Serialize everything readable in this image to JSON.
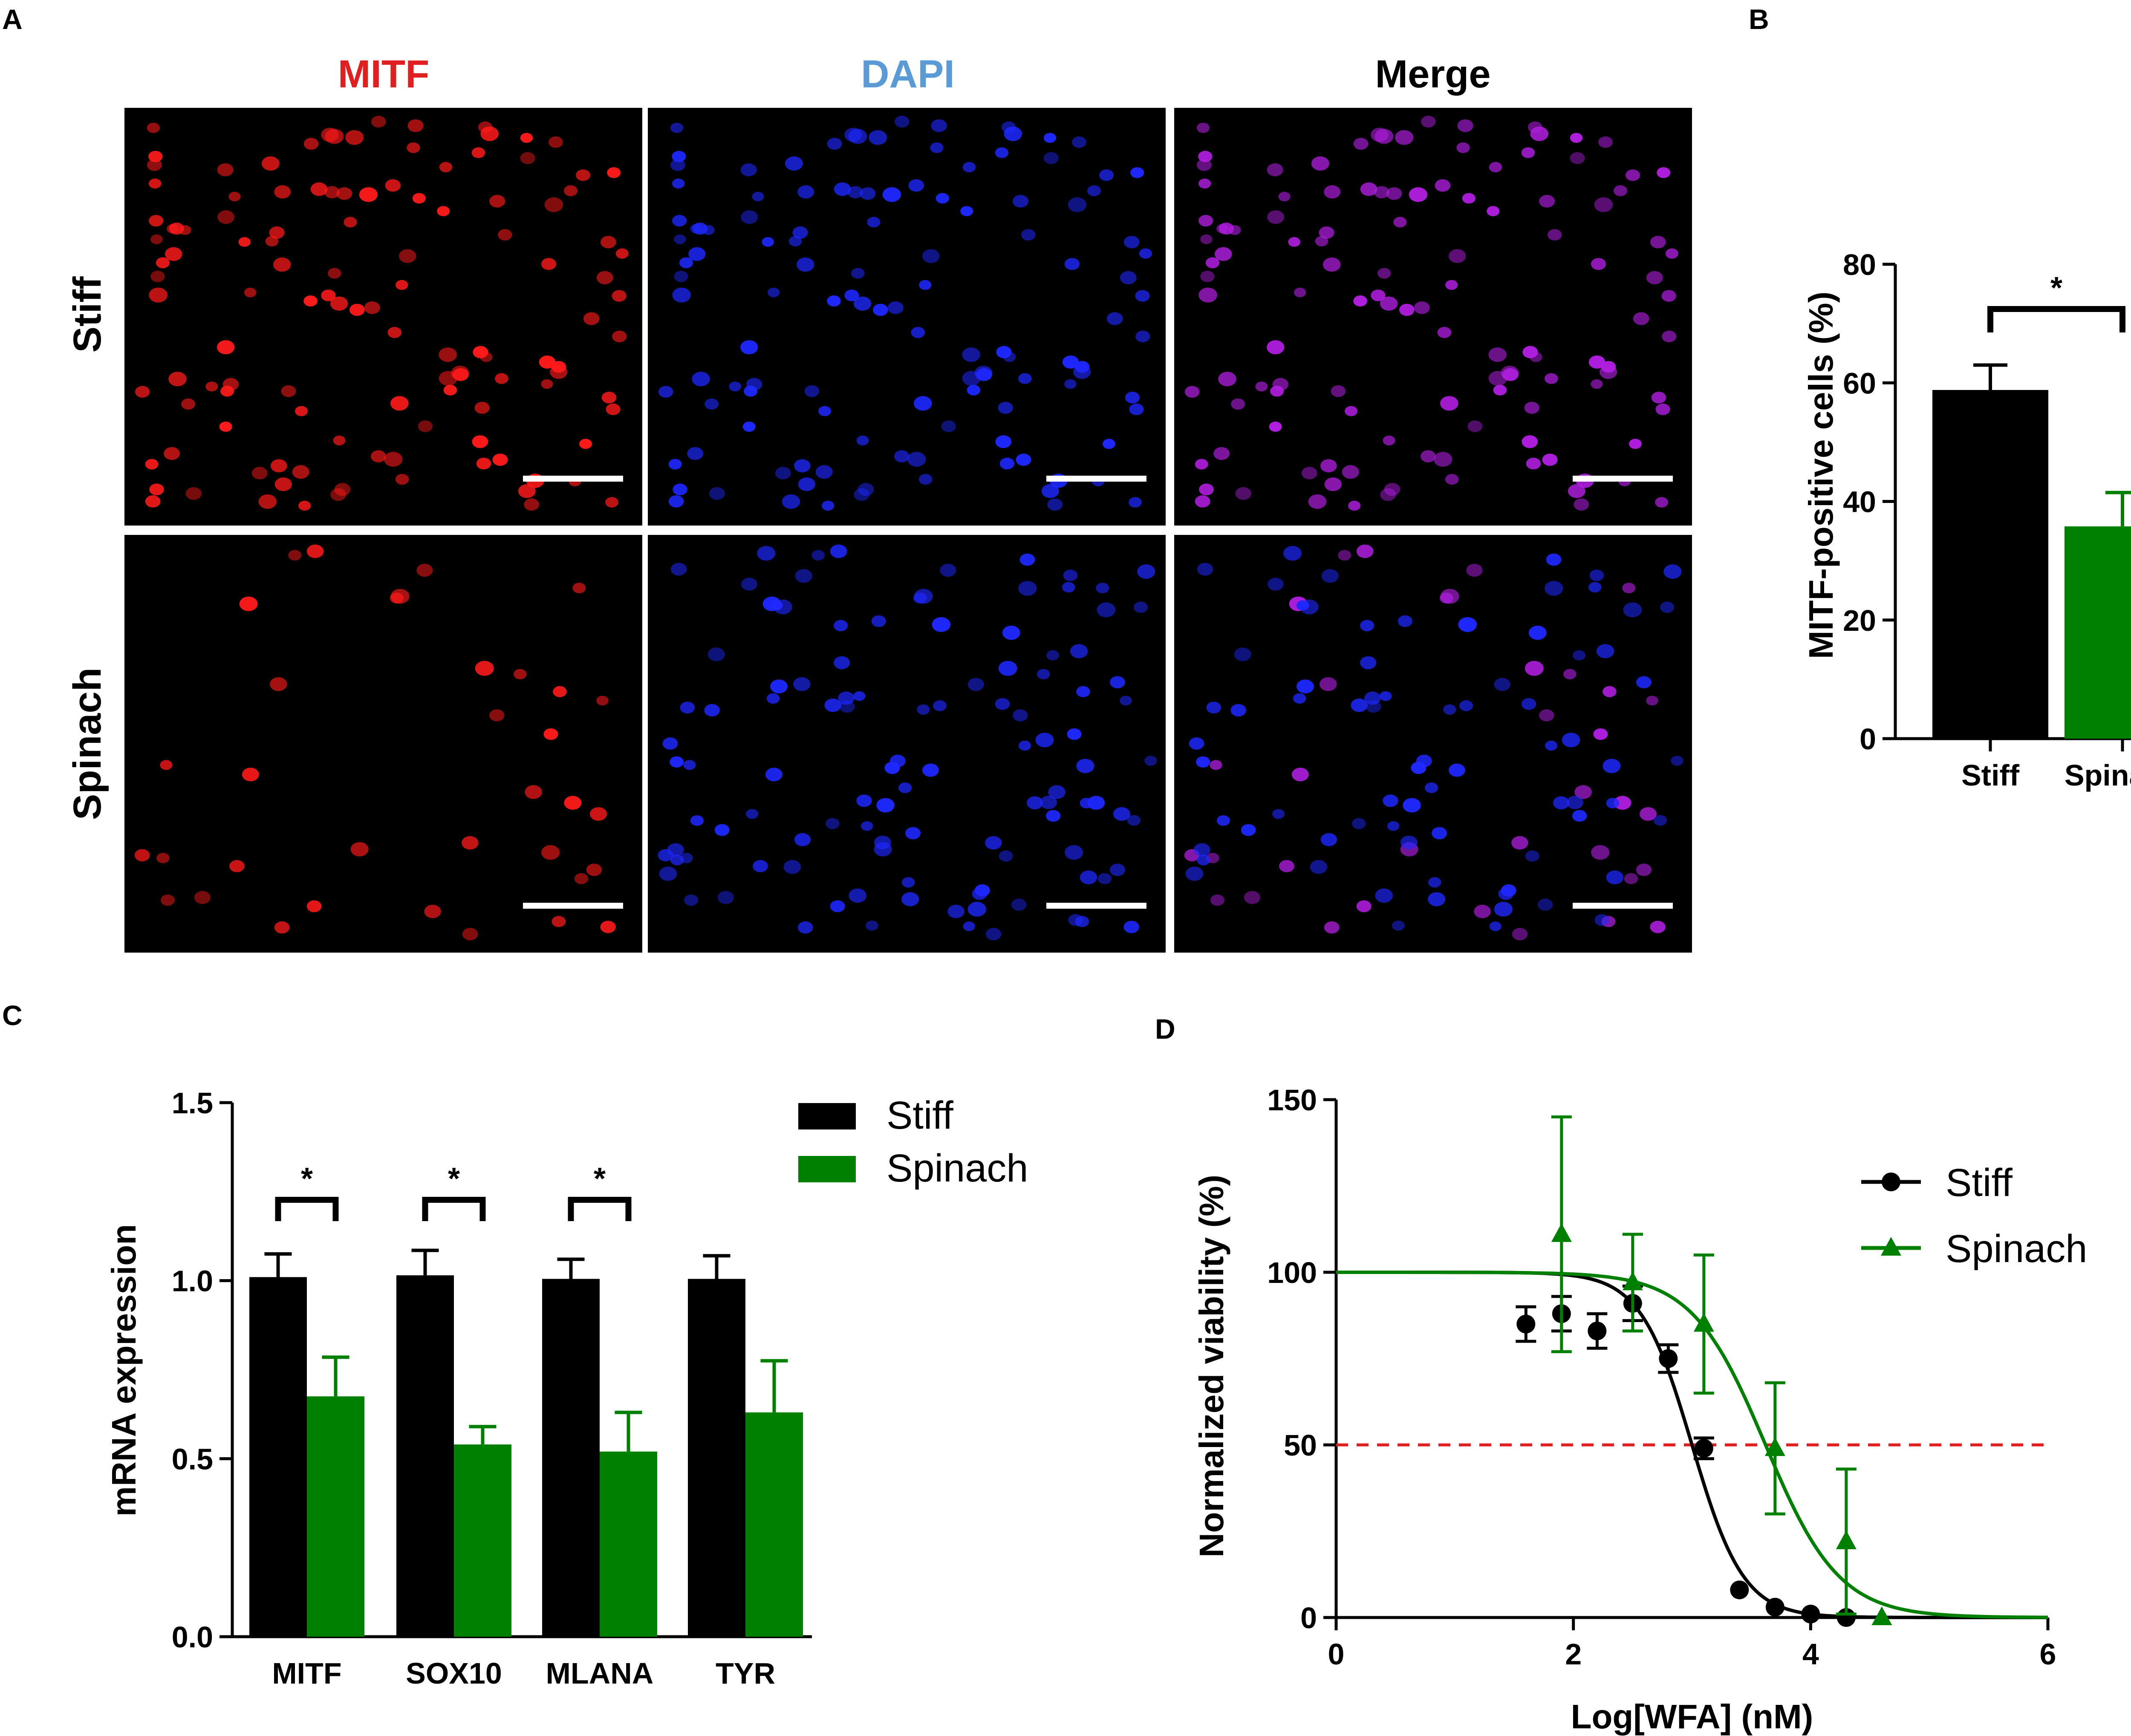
{
  "panel_labels": {
    "a": "A",
    "b": "B",
    "c": "C",
    "d": "D"
  },
  "panel_a": {
    "columns": [
      "MITF",
      "DAPI",
      "Merge"
    ],
    "column_colors": [
      "#e02020",
      "#5b9bd5",
      "#000000"
    ],
    "rows": [
      "Stiff",
      "Spinach"
    ],
    "channel_colors": {
      "MITF": "#ff1a1a",
      "DAPI": "#1e28ff",
      "Merge": "#b01ee0",
      "background": "#000000"
    },
    "stiff_nuclei_count": 120,
    "spinach_nuclei_count_dapi": 110,
    "spinach_mitf_positive_count": 35
  },
  "chart_data": [
    {
      "id": "B",
      "type": "bar",
      "categories": [
        "Stiff",
        "Spinach"
      ],
      "values": [
        58.8,
        35.8
      ],
      "errors": [
        4.2,
        5.7
      ],
      "colors": [
        "#000000",
        "#008000"
      ],
      "ylabel": "MITF-positive cells (%)",
      "ylim": [
        0,
        80
      ],
      "yticks": [
        "0",
        "20",
        "40",
        "60",
        "80"
      ],
      "significance": [
        {
          "between": [
            0,
            1
          ],
          "label": "*"
        }
      ]
    },
    {
      "id": "C",
      "type": "bar",
      "categories": [
        "MITF",
        "SOX10",
        "MLANA",
        "TYR"
      ],
      "series": [
        {
          "name": "Stiff",
          "color": "#000000",
          "values": [
            1.01,
            1.015,
            1.005,
            1.005
          ],
          "errors": [
            0.065,
            0.07,
            0.055,
            0.065
          ]
        },
        {
          "name": "Spinach",
          "color": "#008000",
          "values": [
            0.675,
            0.54,
            0.52,
            0.63
          ],
          "errors": [
            0.11,
            0.05,
            0.11,
            0.145
          ]
        }
      ],
      "ylabel": "mRNA expression",
      "ylim": [
        0,
        1.5
      ],
      "yticks": [
        "0.0",
        "0.5",
        "1.0",
        "1.5"
      ],
      "significance": [
        {
          "category": 0,
          "label": "*"
        },
        {
          "category": 1,
          "label": "*"
        },
        {
          "category": 2,
          "label": "*"
        }
      ],
      "legend": "top-right"
    },
    {
      "id": "D",
      "type": "scatter",
      "xlabel": "Log[WFA] (nM)",
      "ylabel": "Normalized viability (%)",
      "xlim": [
        0,
        6
      ],
      "ylim": [
        0,
        150
      ],
      "xticks": [
        "0",
        "2",
        "4",
        "6"
      ],
      "yticks": [
        "0",
        "50",
        "100",
        "150"
      ],
      "reference_line": {
        "y": 50,
        "color": "#e02020",
        "style": "dashed"
      },
      "legend": "right",
      "series": [
        {
          "name": "Stiff",
          "color": "#000000",
          "marker": "circle",
          "x": [
            1.6,
            1.9,
            2.2,
            2.5,
            2.8,
            3.1,
            3.4,
            3.7,
            4.0,
            4.3
          ],
          "y": [
            85,
            88,
            83,
            91,
            75,
            49,
            8,
            3,
            1,
            0
          ],
          "err": [
            5,
            5,
            5,
            5,
            4,
            3,
            0,
            0,
            0,
            0
          ],
          "fit_ic50_log": 3.0,
          "fit_hill": 2.0
        },
        {
          "name": "Spinach",
          "color": "#008000",
          "marker": "triangle",
          "x": [
            1.9,
            2.5,
            3.1,
            3.7,
            4.3,
            4.6
          ],
          "y": [
            111,
            97,
            85,
            49,
            22,
            0
          ],
          "err": [
            34,
            14,
            20,
            19,
            21,
            0
          ],
          "fit_ic50_log": 3.62,
          "fit_hill": 1.4
        }
      ]
    }
  ]
}
